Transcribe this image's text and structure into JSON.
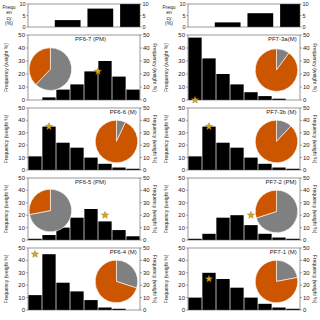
{
  "chart_data": [
    {
      "type": "bar",
      "title": "PF6-7 (PM)",
      "categories": [
        null,
        null,
        null,
        null,
        null,
        null,
        null,
        null
      ],
      "values": [
        0,
        2,
        8,
        12,
        22,
        30,
        18,
        8
      ],
      "color": "#000000",
      "ylabel": "Frequency (weight %)",
      "y2label": "Frequency (weight %)",
      "ylim": [
        0,
        50
      ],
      "yticks": [
        0,
        10,
        20,
        30,
        40,
        50
      ],
      "y2lim": [
        0,
        50
      ],
      "y2ticks": [
        0,
        10,
        20,
        30,
        40,
        50
      ],
      "grid": false,
      "tick_labels": "y",
      "star": {
        "x": 4.5,
        "y": 22,
        "color": "#DAA520",
        "marker": "star"
      },
      "pie": {
        "type": "pie",
        "values": [
          0.62,
          0.38
        ],
        "colors": [
          "#808080",
          "#CC5500"
        ]
      },
      "top": {
        "type": "bar",
        "categories": [
          null,
          null,
          null,
          null
        ],
        "values": [
          0,
          3,
          8,
          10
        ],
        "color": "#000000",
        "ylabel": "Frequ\nen\ncy\n(%)",
        "ylim": [
          0,
          10
        ],
        "yticks": [
          0,
          5,
          10
        ],
        "y2lim": [
          0,
          10
        ],
        "y2ticks": [
          0,
          5,
          10
        ],
        "grid": false,
        "tick_labels": "y"
      }
    },
    {
      "type": "bar",
      "title": "PF7-3a(M)",
      "categories": [
        null,
        null,
        null,
        null,
        null,
        null,
        null,
        null
      ],
      "values": [
        48,
        32,
        20,
        12,
        6,
        3,
        1,
        0
      ],
      "color": "#000000",
      "ylabel": "Frequency (weight %)",
      "y2label": "Frequency (weight %)",
      "ylim": [
        0,
        50
      ],
      "yticks": [
        0,
        10,
        20,
        30,
        40,
        50
      ],
      "y2lim": [
        0,
        50
      ],
      "y2ticks": [
        0,
        10,
        20,
        30,
        40,
        50
      ],
      "grid": false,
      "tick_labels": "y",
      "star": {
        "x": 0,
        "y": 0,
        "color": "#DAA520",
        "marker": "star"
      },
      "pie": {
        "type": "pie",
        "values": [
          0.1,
          0.9
        ],
        "colors": [
          "#808080",
          "#CC5500"
        ]
      },
      "top": {
        "type": "bar",
        "categories": [
          null,
          null,
          null,
          null
        ],
        "values": [
          0,
          2,
          6,
          10
        ],
        "color": "#000000",
        "ylabel": "Frequ\nen\ncy\n(%)",
        "ylim": [
          0,
          10
        ],
        "yticks": [
          0,
          5,
          10
        ],
        "y2lim": [
          0,
          10
        ],
        "y2ticks": [
          0,
          5,
          10
        ],
        "grid": false,
        "tick_labels": "y"
      }
    },
    {
      "type": "bar",
      "title": "PF6-6 (M)",
      "categories": [
        null,
        null,
        null,
        null,
        null,
        null,
        null,
        null
      ],
      "values": [
        11,
        35,
        22,
        18,
        10,
        5,
        2,
        1
      ],
      "color": "#000000",
      "ylabel": "Frequency (weight %)",
      "y2label": "Frequency (weight %)",
      "ylim": [
        0,
        50
      ],
      "yticks": [
        0,
        10,
        20,
        30,
        40,
        50
      ],
      "y2lim": [
        0,
        50
      ],
      "y2ticks": [
        0,
        10,
        20,
        30,
        40,
        50
      ],
      "grid": false,
      "tick_labels": "y",
      "star": {
        "x": 1,
        "y": 35,
        "color": "#DAA520",
        "marker": "star"
      },
      "pie": {
        "type": "pie",
        "values": [
          0.07,
          0.93
        ],
        "colors": [
          "#808080",
          "#CC5500"
        ]
      }
    },
    {
      "type": "bar",
      "title": "PF7-3b (M)",
      "categories": [
        null,
        null,
        null,
        null,
        null,
        null,
        null,
        null
      ],
      "values": [
        11,
        35,
        22,
        18,
        10,
        5,
        2,
        1
      ],
      "color": "#000000",
      "ylabel": "Frequency (weight %)",
      "y2label": "Frequency (weight %)",
      "ylim": [
        0,
        50
      ],
      "yticks": [
        0,
        10,
        20,
        30,
        40,
        50
      ],
      "y2lim": [
        0,
        50
      ],
      "y2ticks": [
        0,
        10,
        20,
        30,
        40,
        50
      ],
      "grid": false,
      "tick_labels": "y",
      "star": {
        "x": 1,
        "y": 35,
        "color": "#DAA520",
        "marker": "star"
      },
      "pie": {
        "type": "pie",
        "values": [
          0.12,
          0.88
        ],
        "colors": [
          "#808080",
          "#CC5500"
        ]
      }
    },
    {
      "type": "bar",
      "title": "PF6-5 (PM)",
      "categories": [
        null,
        null,
        null,
        null,
        null,
        null,
        null,
        null
      ],
      "values": [
        1,
        4,
        10,
        18,
        25,
        15,
        8,
        3
      ],
      "color": "#000000",
      "ylabel": "Frequency (weight %)",
      "y2label": "Frequency (weight %)",
      "ylim": [
        0,
        50
      ],
      "yticks": [
        0,
        10,
        20,
        30,
        40,
        50
      ],
      "y2lim": [
        0,
        50
      ],
      "y2ticks": [
        0,
        10,
        20,
        30,
        40,
        50
      ],
      "grid": false,
      "tick_labels": "y",
      "star": {
        "x": 5,
        "y": 20,
        "color": "#DAA520",
        "marker": "star"
      },
      "pie": {
        "type": "pie",
        "values": [
          0.72,
          0.28
        ],
        "colors": [
          "#808080",
          "#CC5500"
        ]
      }
    },
    {
      "type": "bar",
      "title": "PF7-2 (PM)",
      "categories": [
        null,
        null,
        null,
        null,
        null,
        null,
        null,
        null
      ],
      "values": [
        1,
        5,
        18,
        20,
        12,
        5,
        2,
        1
      ],
      "color": "#000000",
      "ylabel": "Frequency (weight %)",
      "y2label": "Frequency (weight %)",
      "ylim": [
        0,
        50
      ],
      "yticks": [
        0,
        10,
        20,
        30,
        40,
        50
      ],
      "y2lim": [
        0,
        50
      ],
      "y2ticks": [
        0,
        10,
        20,
        30,
        40,
        50
      ],
      "grid": false,
      "tick_labels": "y",
      "star": {
        "x": 4,
        "y": 20,
        "color": "#DAA520",
        "marker": "star"
      },
      "pie": {
        "type": "pie",
        "values": [
          0.7,
          0.3
        ],
        "colors": [
          "#808080",
          "#CC5500"
        ]
      }
    },
    {
      "type": "bar",
      "title": "PF6-4 (M)",
      "categories": [
        null,
        null,
        null,
        null,
        null,
        null,
        null,
        null
      ],
      "values": [
        12,
        45,
        22,
        15,
        8,
        2,
        1,
        0
      ],
      "color": "#000000",
      "ylabel": "Frequency (weight %)",
      "y2label": "Frequency (weight %)",
      "ylim": [
        0,
        50
      ],
      "yticks": [
        0,
        10,
        20,
        30,
        40,
        50
      ],
      "y2lim": [
        0,
        50
      ],
      "y2ticks": [
        0,
        10,
        20,
        30,
        40,
        50
      ],
      "grid": false,
      "tick_labels": "y",
      "star": {
        "x": 0,
        "y": 45,
        "color": "#DAA520",
        "marker": "star"
      },
      "pie": {
        "type": "pie",
        "values": [
          0.3,
          0.7
        ],
        "colors": [
          "#808080",
          "#CC5500"
        ]
      }
    },
    {
      "type": "bar",
      "title": "PF7-1 (M)",
      "categories": [
        null,
        null,
        null,
        null,
        null,
        null,
        null,
        null
      ],
      "values": [
        10,
        30,
        25,
        18,
        10,
        5,
        2,
        1
      ],
      "color": "#000000",
      "ylabel": "Frequency (weight %)",
      "y2label": "Frequency (weight %)",
      "ylim": [
        0,
        50
      ],
      "yticks": [
        0,
        10,
        20,
        30,
        40,
        50
      ],
      "y2lim": [
        0,
        50
      ],
      "y2ticks": [
        0,
        10,
        20,
        30,
        40,
        50
      ],
      "grid": false,
      "tick_labels": "y",
      "star": {
        "x": 1,
        "y": 25,
        "color": "#DAA520",
        "marker": "star"
      },
      "pie": {
        "type": "pie",
        "values": [
          0.22,
          0.78
        ],
        "colors": [
          "#808080",
          "#CC5500"
        ]
      }
    }
  ]
}
